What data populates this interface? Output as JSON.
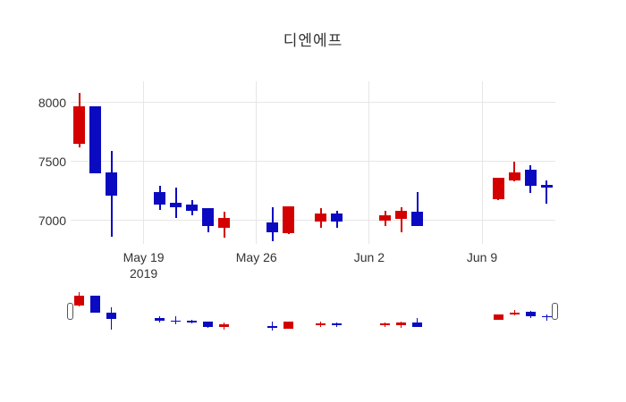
{
  "chart_data": {
    "type": "candlestick",
    "title": "디엔에프",
    "xlabel": "",
    "ylabel": "",
    "grid": true,
    "legend": false,
    "rangeslider": true,
    "ylim": [
      6800,
      8180
    ],
    "y_ticks": [
      {
        "value": 8000,
        "label": "8000"
      },
      {
        "value": 7500,
        "label": "7500"
      },
      {
        "value": 7000,
        "label": "7000"
      }
    ],
    "x_ticks": [
      {
        "date": "2019-05-19",
        "label": "May 19",
        "sublabel": "2019"
      },
      {
        "date": "2019-05-26",
        "label": "May 26",
        "sublabel": ""
      },
      {
        "date": "2019-06-02",
        "label": "Jun 2",
        "sublabel": ""
      },
      {
        "date": "2019-06-09",
        "label": "Jun 9",
        "sublabel": ""
      }
    ],
    "colors": {
      "increasing": "#d40000",
      "decreasing": "#0a0ac0",
      "grid": "#e6e6e6",
      "text": "#333333",
      "background": "#ffffff",
      "handle_fill": "#ffffff",
      "handle_border": "#555555"
    },
    "candles": [
      {
        "date": "2019-05-15",
        "open": 7650,
        "high": 8080,
        "low": 7620,
        "close": 7970
      },
      {
        "date": "2019-05-16",
        "open": 7970,
        "high": 7970,
        "low": 7400,
        "close": 7400
      },
      {
        "date": "2019-05-17",
        "open": 7410,
        "high": 7590,
        "low": 6860,
        "close": 7210
      },
      {
        "date": "2019-05-20",
        "open": 7240,
        "high": 7290,
        "low": 7090,
        "close": 7130
      },
      {
        "date": "2019-05-21",
        "open": 7150,
        "high": 7280,
        "low": 7020,
        "close": 7110
      },
      {
        "date": "2019-05-22",
        "open": 7130,
        "high": 7170,
        "low": 7040,
        "close": 7080
      },
      {
        "date": "2019-05-23",
        "open": 7100,
        "high": 7100,
        "low": 6900,
        "close": 6950
      },
      {
        "date": "2019-05-24",
        "open": 6940,
        "high": 7070,
        "low": 6850,
        "close": 7020
      },
      {
        "date": "2019-05-27",
        "open": 6980,
        "high": 7110,
        "low": 6820,
        "close": 6900
      },
      {
        "date": "2019-05-28",
        "open": 6890,
        "high": 7120,
        "low": 6880,
        "close": 7120
      },
      {
        "date": "2019-05-30",
        "open": 6990,
        "high": 7100,
        "low": 6940,
        "close": 7060
      },
      {
        "date": "2019-05-31",
        "open": 7060,
        "high": 7080,
        "low": 6940,
        "close": 6990
      },
      {
        "date": "2019-06-03",
        "open": 7000,
        "high": 7080,
        "low": 6950,
        "close": 7040
      },
      {
        "date": "2019-06-04",
        "open": 7010,
        "high": 7110,
        "low": 6900,
        "close": 7080
      },
      {
        "date": "2019-06-05",
        "open": 7070,
        "high": 7240,
        "low": 6950,
        "close": 6950
      },
      {
        "date": "2019-06-10",
        "open": 7180,
        "high": 7360,
        "low": 7170,
        "close": 7360
      },
      {
        "date": "2019-06-11",
        "open": 7340,
        "high": 7500,
        "low": 7330,
        "close": 7410
      },
      {
        "date": "2019-06-12",
        "open": 7430,
        "high": 7470,
        "low": 7230,
        "close": 7290
      },
      {
        "date": "2019-06-13",
        "open": 7300,
        "high": 7340,
        "low": 7140,
        "close": 7280
      }
    ]
  }
}
